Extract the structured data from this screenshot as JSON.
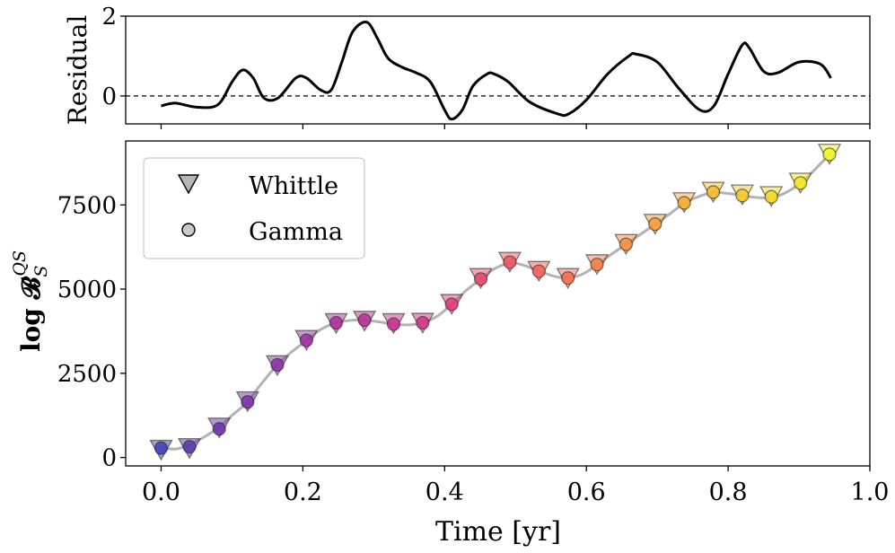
{
  "chart_data": [
    {
      "type": "line",
      "panel": "top",
      "ylabel": "Residual",
      "ylim": [
        -0.7,
        2.0
      ],
      "xlim": [
        -0.05,
        1.0
      ],
      "yticks": [
        0,
        2
      ],
      "ytick_labels": [
        "0",
        "2"
      ],
      "reference_line": {
        "y": 0,
        "style": "dashed"
      },
      "series": [
        {
          "name": "residual",
          "x": [
            0.0,
            0.02,
            0.05,
            0.08,
            0.1,
            0.115,
            0.13,
            0.145,
            0.165,
            0.19,
            0.205,
            0.225,
            0.24,
            0.255,
            0.27,
            0.29,
            0.305,
            0.32,
            0.34,
            0.36,
            0.38,
            0.4,
            0.41,
            0.425,
            0.44,
            0.46,
            0.47,
            0.49,
            0.52,
            0.56,
            0.575,
            0.6,
            0.63,
            0.66,
            0.67,
            0.7,
            0.73,
            0.76,
            0.78,
            0.8,
            0.82,
            0.83,
            0.85,
            0.87,
            0.9,
            0.93,
            0.945
          ],
          "y": [
            -0.25,
            -0.18,
            -0.28,
            -0.22,
            0.35,
            0.65,
            0.45,
            -0.05,
            -0.05,
            0.45,
            0.45,
            0.15,
            0.15,
            0.85,
            1.6,
            1.85,
            1.45,
            0.95,
            0.72,
            0.58,
            0.35,
            -0.35,
            -0.58,
            -0.35,
            0.25,
            0.55,
            0.55,
            0.35,
            -0.15,
            -0.45,
            -0.45,
            -0.1,
            0.55,
            1.0,
            1.05,
            0.85,
            0.2,
            -0.35,
            -0.25,
            0.55,
            1.28,
            1.2,
            0.62,
            0.58,
            0.85,
            0.8,
            0.45
          ]
        }
      ]
    },
    {
      "type": "scatter",
      "panel": "bottom",
      "xlabel": "Time [yr]",
      "ylabel": "log 𝓑",
      "ylabel_sub": "S",
      "ylabel_sup": "QS",
      "xlim": [
        -0.05,
        1.0
      ],
      "ylim": [
        -250,
        9400
      ],
      "xticks": [
        0.0,
        0.2,
        0.4,
        0.6,
        0.8,
        1.0
      ],
      "xtick_labels": [
        "0.0",
        "0.2",
        "0.4",
        "0.6",
        "0.8",
        "1.0"
      ],
      "yticks": [
        0,
        2500,
        5000,
        7500
      ],
      "ytick_labels": [
        "0",
        "2500",
        "5000",
        "7500"
      ],
      "legend": {
        "placement": "top-left",
        "entries": [
          {
            "label": "Whittle",
            "marker": "triangle-down"
          },
          {
            "label": "Gamma",
            "marker": "circle"
          }
        ]
      },
      "x": [
        0.0,
        0.04,
        0.082,
        0.122,
        0.164,
        0.205,
        0.247,
        0.287,
        0.328,
        0.369,
        0.41,
        0.451,
        0.492,
        0.533,
        0.574,
        0.615,
        0.656,
        0.697,
        0.738,
        0.779,
        0.82,
        0.861,
        0.902,
        0.943
      ],
      "series": [
        {
          "name": "Whittle",
          "marker": "triangle-down",
          "values": [
            270,
            320,
            930,
            1710,
            2780,
            3530,
            4030,
            4100,
            4030,
            4040,
            4600,
            5370,
            5850,
            5580,
            5370,
            5780,
            6380,
            6980,
            7620,
            7930,
            7850,
            7800,
            8200,
            9060
          ]
        },
        {
          "name": "Gamma",
          "marker": "circle",
          "values": [
            280,
            320,
            850,
            1650,
            2750,
            3480,
            4000,
            4080,
            3960,
            4000,
            4550,
            5300,
            5800,
            5530,
            5330,
            5730,
            6330,
            6930,
            7560,
            7880,
            7780,
            7740,
            8150,
            9000
          ]
        }
      ],
      "trend_line": {
        "x": [
          0.0,
          0.02,
          0.04,
          0.06,
          0.082,
          0.1,
          0.122,
          0.14,
          0.164,
          0.185,
          0.205,
          0.225,
          0.247,
          0.267,
          0.287,
          0.31,
          0.328,
          0.35,
          0.369,
          0.39,
          0.41,
          0.43,
          0.451,
          0.47,
          0.492,
          0.51,
          0.533,
          0.555,
          0.574,
          0.595,
          0.615,
          0.635,
          0.656,
          0.68,
          0.697,
          0.72,
          0.738,
          0.76,
          0.779,
          0.8,
          0.82,
          0.84,
          0.861,
          0.88,
          0.902,
          0.92,
          0.943
        ],
        "y": [
          300,
          250,
          380,
          600,
          900,
          1250,
          1650,
          2150,
          2750,
          3150,
          3470,
          3800,
          4000,
          4070,
          4080,
          4020,
          3960,
          3940,
          4000,
          4200,
          4550,
          4950,
          5300,
          5600,
          5770,
          5720,
          5540,
          5380,
          5330,
          5450,
          5720,
          6030,
          6330,
          6680,
          6920,
          7270,
          7550,
          7760,
          7870,
          7840,
          7780,
          7720,
          7720,
          7850,
          8150,
          8500,
          9000
        ]
      },
      "colors": [
        "#3f3fb6",
        "#5a37ae",
        "#6a34ab",
        "#7b30a8",
        "#8b30a6",
        "#9b2fa3",
        "#ab2f9f",
        "#ba2f98",
        "#c8308f",
        "#d43483",
        "#de3b76",
        "#e5476a",
        "#ea5560",
        "#ee6357",
        "#f1704e",
        "#f37e47",
        "#f58c40",
        "#f79b39",
        "#f8aa33",
        "#f9b92d",
        "#f8c828",
        "#f6d824",
        "#f3e822",
        "#f0f424"
      ]
    }
  ]
}
